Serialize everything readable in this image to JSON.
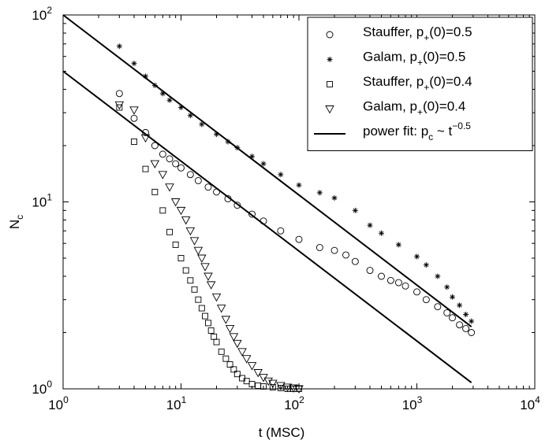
{
  "chart_data": {
    "type": "scatter",
    "xscale": "log",
    "yscale": "log",
    "xlim": [
      1,
      10000
    ],
    "ylim": [
      1,
      100
    ],
    "xlabel": "t (MSC)",
    "ylabel": "N",
    "ylabel_sub": "c",
    "x_ticks": [
      {
        "value": 1,
        "base": "10",
        "exp": "0"
      },
      {
        "value": 10,
        "base": "10",
        "exp": "1"
      },
      {
        "value": 100,
        "base": "10",
        "exp": "2"
      },
      {
        "value": 1000,
        "base": "10",
        "exp": "3"
      },
      {
        "value": 10000,
        "base": "10",
        "exp": "4"
      }
    ],
    "y_ticks": [
      {
        "value": 1,
        "base": "10",
        "exp": "0"
      },
      {
        "value": 10,
        "base": "10",
        "exp": "1"
      },
      {
        "value": 100,
        "base": "10",
        "exp": "2"
      }
    ],
    "grid": false,
    "legend_position": "top-right",
    "legend": [
      {
        "pre": "Stauffer, p",
        "sub": "+",
        "post": "(0)=0.5",
        "marker": "circle"
      },
      {
        "pre": "Galam, p",
        "sub": "+",
        "post": "(0)=0.5",
        "marker": "star"
      },
      {
        "pre": "Stauffer, p",
        "sub": "+",
        "post": "(0)=0.4",
        "marker": "square"
      },
      {
        "pre": "Galam, p",
        "sub": "+",
        "post": "(0)=0.4",
        "marker": "triangle-down"
      },
      {
        "pre": "power fit: p",
        "sub": "c",
        "mid": " ~ t",
        "sup": "−0.5",
        "marker": "line"
      }
    ],
    "series": [
      {
        "marker": "circle",
        "points": [
          [
            3,
            38
          ],
          [
            4,
            28
          ],
          [
            5,
            23.5
          ],
          [
            6,
            20
          ],
          [
            7,
            18
          ],
          [
            8,
            17
          ],
          [
            9,
            16
          ],
          [
            10,
            15.2
          ],
          [
            12,
            14
          ],
          [
            14,
            13
          ],
          [
            17,
            12
          ],
          [
            20,
            11.3
          ],
          [
            25,
            10.4
          ],
          [
            30,
            9.6
          ],
          [
            40,
            8.6
          ],
          [
            50,
            7.9
          ],
          [
            70,
            7.0
          ],
          [
            100,
            6.3
          ],
          [
            150,
            5.7
          ],
          [
            200,
            5.5
          ],
          [
            250,
            5.2
          ],
          [
            300,
            4.8
          ],
          [
            400,
            4.3
          ],
          [
            500,
            4.0
          ],
          [
            600,
            3.8
          ],
          [
            700,
            3.7
          ],
          [
            800,
            3.55
          ],
          [
            1000,
            3.3
          ],
          [
            1200,
            3.0
          ],
          [
            1500,
            2.75
          ],
          [
            1800,
            2.55
          ],
          [
            2000,
            2.4
          ],
          [
            2300,
            2.2
          ],
          [
            2600,
            2.1
          ],
          [
            2900,
            2.0
          ]
        ]
      },
      {
        "marker": "star",
        "points": [
          [
            3,
            68
          ],
          [
            4,
            55
          ],
          [
            5,
            47
          ],
          [
            6,
            42
          ],
          [
            7,
            38
          ],
          [
            8,
            35
          ],
          [
            10,
            32
          ],
          [
            12,
            29
          ],
          [
            15,
            26
          ],
          [
            20,
            23
          ],
          [
            25,
            21
          ],
          [
            30,
            19.5
          ],
          [
            40,
            17.5
          ],
          [
            50,
            16
          ],
          [
            70,
            14
          ],
          [
            100,
            12.3
          ],
          [
            150,
            11.2
          ],
          [
            200,
            10.5
          ],
          [
            300,
            9.0
          ],
          [
            400,
            7.5
          ],
          [
            500,
            6.8
          ],
          [
            700,
            5.9
          ],
          [
            1000,
            5.1
          ],
          [
            1200,
            4.6
          ],
          [
            1500,
            4.0
          ],
          [
            1800,
            3.5
          ],
          [
            2000,
            3.1
          ],
          [
            2300,
            2.8
          ],
          [
            2600,
            2.5
          ],
          [
            2900,
            2.3
          ]
        ]
      },
      {
        "marker": "square",
        "points": [
          [
            3,
            32
          ],
          [
            4,
            21
          ],
          [
            5,
            15
          ],
          [
            6,
            11.3
          ],
          [
            7,
            9
          ],
          [
            8,
            6.9
          ],
          [
            9,
            5.9
          ],
          [
            10,
            5
          ],
          [
            11,
            4.3
          ],
          [
            12,
            3.8
          ],
          [
            13,
            3.4
          ],
          [
            14,
            3.0
          ],
          [
            15,
            2.7
          ],
          [
            16,
            2.45
          ],
          [
            17,
            2.25
          ],
          [
            18,
            2.05
          ],
          [
            19,
            1.9
          ],
          [
            20,
            1.78
          ],
          [
            22,
            1.58
          ],
          [
            24,
            1.45
          ],
          [
            26,
            1.35
          ],
          [
            28,
            1.27
          ],
          [
            30,
            1.2
          ],
          [
            33,
            1.14
          ],
          [
            36,
            1.1
          ],
          [
            40,
            1.06
          ],
          [
            45,
            1.04
          ],
          [
            50,
            1.03
          ],
          [
            60,
            1.02
          ],
          [
            70,
            1.01
          ],
          [
            80,
            1.0
          ],
          [
            90,
            1.0
          ],
          [
            100,
            1.0
          ]
        ]
      },
      {
        "marker": "triangle-down",
        "points": [
          [
            3,
            33
          ],
          [
            4,
            31
          ],
          [
            5,
            22
          ],
          [
            6,
            16
          ],
          [
            7,
            14
          ],
          [
            8,
            12
          ],
          [
            9,
            10
          ],
          [
            10,
            9
          ],
          [
            11,
            8
          ],
          [
            12,
            7
          ],
          [
            13,
            6.2
          ],
          [
            14,
            5.5
          ],
          [
            15,
            5
          ],
          [
            16,
            4.5
          ],
          [
            17,
            4
          ],
          [
            18,
            3.6
          ],
          [
            20,
            3.1
          ],
          [
            22,
            2.7
          ],
          [
            24,
            2.35
          ],
          [
            26,
            2.1
          ],
          [
            28,
            1.9
          ],
          [
            30,
            1.75
          ],
          [
            33,
            1.58
          ],
          [
            36,
            1.45
          ],
          [
            40,
            1.33
          ],
          [
            45,
            1.22
          ],
          [
            50,
            1.15
          ],
          [
            55,
            1.1
          ],
          [
            60,
            1.07
          ],
          [
            70,
            1.04
          ],
          [
            80,
            1.02
          ],
          [
            90,
            1.01
          ],
          [
            100,
            1.0
          ]
        ]
      }
    ],
    "fit_lines": [
      {
        "x": [
          1,
          2900
        ],
        "y": [
          100,
          2.15
        ]
      },
      {
        "x": [
          1,
          2900
        ],
        "y": [
          50,
          1.08
        ]
      }
    ]
  }
}
